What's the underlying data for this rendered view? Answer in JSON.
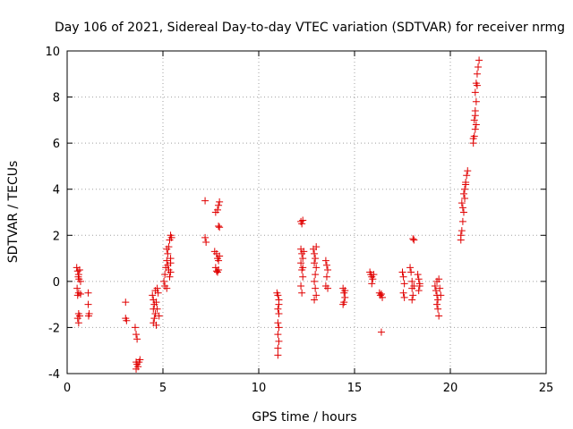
{
  "chart_data": {
    "type": "scatter",
    "title": "Day 106 of 2021, Sidereal Day-to-day VTEC variation (SDTVAR) for receiver nrmg",
    "xlabel": "GPS time / hours",
    "ylabel": "SDTVAR / TECUs",
    "xlim": [
      0,
      25
    ],
    "ylim": [
      -4,
      10
    ],
    "xticks": [
      0,
      5,
      10,
      15,
      20,
      25
    ],
    "yticks": [
      -4,
      -2,
      0,
      2,
      4,
      6,
      8,
      10
    ],
    "xtick_labels": [
      "0",
      "5",
      "10",
      "15",
      "20",
      "25"
    ],
    "ytick_labels": [
      "-4",
      "-2",
      "0",
      "2",
      "4",
      "6",
      "8",
      "10"
    ],
    "grid": true,
    "marker": "+",
    "color": "#e00000",
    "series": [
      {
        "name": "SDTVAR",
        "points": [
          [
            0.5,
            0.6
          ],
          [
            0.55,
            0.45
          ],
          [
            0.6,
            0.3
          ],
          [
            0.62,
            0.1
          ],
          [
            0.65,
            0.5
          ],
          [
            0.58,
            0.2
          ],
          [
            0.7,
            0.0
          ],
          [
            0.52,
            -0.3
          ],
          [
            0.6,
            -0.5
          ],
          [
            0.7,
            -0.55
          ],
          [
            0.55,
            -0.6
          ],
          [
            0.6,
            -1.4
          ],
          [
            0.65,
            -1.5
          ],
          [
            0.55,
            -1.6
          ],
          [
            0.6,
            -1.8
          ],
          [
            1.1,
            -0.5
          ],
          [
            1.1,
            -1.0
          ],
          [
            1.15,
            -1.4
          ],
          [
            1.12,
            -1.5
          ],
          [
            3.05,
            -0.9
          ],
          [
            3.05,
            -1.6
          ],
          [
            3.1,
            -1.7
          ],
          [
            3.55,
            -2.0
          ],
          [
            3.6,
            -2.3
          ],
          [
            3.65,
            -2.5
          ],
          [
            3.6,
            -3.5
          ],
          [
            3.65,
            -3.6
          ],
          [
            3.7,
            -3.7
          ],
          [
            3.75,
            -3.5
          ],
          [
            3.8,
            -3.4
          ],
          [
            3.6,
            -3.8
          ],
          [
            4.45,
            -0.6
          ],
          [
            4.5,
            -0.8
          ],
          [
            4.55,
            -1.0
          ],
          [
            4.5,
            -1.2
          ],
          [
            4.6,
            -1.4
          ],
          [
            4.55,
            -1.6
          ],
          [
            4.5,
            -1.8
          ],
          [
            4.65,
            -1.9
          ],
          [
            4.6,
            -0.4
          ],
          [
            4.7,
            -0.3
          ],
          [
            4.75,
            -0.5
          ],
          [
            4.7,
            -1.2
          ],
          [
            4.8,
            -1.5
          ],
          [
            4.65,
            -0.9
          ],
          [
            5.05,
            0.0
          ],
          [
            5.1,
            0.3
          ],
          [
            5.15,
            0.6
          ],
          [
            5.2,
            0.9
          ],
          [
            5.25,
            1.2
          ],
          [
            5.3,
            1.5
          ],
          [
            5.35,
            1.8
          ],
          [
            5.4,
            2.0
          ],
          [
            5.1,
            -0.2
          ],
          [
            5.2,
            -0.3
          ],
          [
            5.3,
            0.5
          ],
          [
            5.4,
            0.8
          ],
          [
            5.35,
            0.2
          ],
          [
            5.4,
            1.0
          ],
          [
            5.45,
            1.9
          ],
          [
            5.2,
            1.4
          ],
          [
            5.25,
            0.7
          ],
          [
            5.4,
            0.4
          ],
          [
            7.2,
            3.5
          ],
          [
            7.2,
            1.9
          ],
          [
            7.25,
            1.7
          ],
          [
            7.75,
            3.0
          ],
          [
            7.85,
            3.1
          ],
          [
            7.9,
            3.3
          ],
          [
            7.95,
            3.45
          ],
          [
            7.9,
            2.4
          ],
          [
            7.95,
            2.35
          ],
          [
            7.7,
            1.3
          ],
          [
            7.8,
            1.2
          ],
          [
            7.85,
            1.0
          ],
          [
            7.9,
            0.9
          ],
          [
            7.95,
            1.1
          ],
          [
            7.75,
            0.6
          ],
          [
            7.8,
            0.45
          ],
          [
            7.85,
            0.4
          ],
          [
            7.9,
            0.5
          ],
          [
            10.95,
            -0.5
          ],
          [
            11.0,
            -0.6
          ],
          [
            11.05,
            -0.8
          ],
          [
            11.0,
            -1.2
          ],
          [
            11.05,
            -1.4
          ],
          [
            11.0,
            -1.8
          ],
          [
            11.05,
            -2.0
          ],
          [
            11.0,
            -2.3
          ],
          [
            11.05,
            -2.6
          ],
          [
            11.0,
            -2.9
          ],
          [
            11.0,
            -3.2
          ],
          [
            11.05,
            -1.0
          ],
          [
            12.2,
            2.6
          ],
          [
            12.25,
            2.5
          ],
          [
            12.3,
            2.65
          ],
          [
            12.2,
            1.4
          ],
          [
            12.25,
            1.2
          ],
          [
            12.3,
            1.0
          ],
          [
            12.2,
            0.8
          ],
          [
            12.25,
            0.5
          ],
          [
            12.3,
            0.2
          ],
          [
            12.2,
            -0.2
          ],
          [
            12.25,
            -0.5
          ],
          [
            12.35,
            1.3
          ],
          [
            12.3,
            0.6
          ],
          [
            12.85,
            1.4
          ],
          [
            12.9,
            1.2
          ],
          [
            12.95,
            1.0
          ],
          [
            12.9,
            0.8
          ],
          [
            13.0,
            0.6
          ],
          [
            12.95,
            0.3
          ],
          [
            12.9,
            0.0
          ],
          [
            12.95,
            -0.3
          ],
          [
            13.0,
            -0.6
          ],
          [
            12.9,
            -0.8
          ],
          [
            13.0,
            1.5
          ],
          [
            13.5,
            0.9
          ],
          [
            13.55,
            0.7
          ],
          [
            13.6,
            0.5
          ],
          [
            13.55,
            0.2
          ],
          [
            13.5,
            -0.2
          ],
          [
            13.6,
            -0.3
          ],
          [
            14.4,
            -0.3
          ],
          [
            14.45,
            -0.5
          ],
          [
            14.5,
            -0.7
          ],
          [
            14.45,
            -0.9
          ],
          [
            14.4,
            -1.0
          ],
          [
            14.5,
            -0.4
          ],
          [
            15.8,
            0.4
          ],
          [
            15.85,
            0.3
          ],
          [
            15.9,
            0.2
          ],
          [
            15.95,
            0.1
          ],
          [
            15.9,
            -0.1
          ],
          [
            16.0,
            0.3
          ],
          [
            16.3,
            -0.5
          ],
          [
            16.35,
            -0.6
          ],
          [
            16.4,
            -0.55
          ],
          [
            16.45,
            -0.7
          ],
          [
            16.4,
            -2.2
          ],
          [
            17.5,
            0.4
          ],
          [
            17.55,
            0.2
          ],
          [
            17.6,
            -0.1
          ],
          [
            17.55,
            -0.5
          ],
          [
            17.6,
            -0.7
          ],
          [
            17.9,
            0.6
          ],
          [
            17.95,
            0.4
          ],
          [
            18.0,
            0.0
          ],
          [
            18.0,
            -0.3
          ],
          [
            18.05,
            -0.6
          ],
          [
            18.0,
            -0.8
          ],
          [
            18.05,
            1.85
          ],
          [
            18.1,
            1.8
          ],
          [
            18.1,
            -0.2
          ],
          [
            18.3,
            0.3
          ],
          [
            18.35,
            0.1
          ],
          [
            18.4,
            -0.2
          ],
          [
            18.35,
            -0.4
          ],
          [
            18.4,
            -0.1
          ],
          [
            19.2,
            -0.2
          ],
          [
            19.25,
            -0.4
          ],
          [
            19.3,
            -0.6
          ],
          [
            19.35,
            -0.8
          ],
          [
            19.3,
            -1.0
          ],
          [
            19.35,
            -1.2
          ],
          [
            19.4,
            -1.5
          ],
          [
            19.3,
            0.0
          ],
          [
            19.4,
            0.1
          ],
          [
            19.45,
            -0.3
          ],
          [
            19.5,
            -0.6
          ],
          [
            20.55,
            1.8
          ],
          [
            20.6,
            2.2
          ],
          [
            20.65,
            2.6
          ],
          [
            20.7,
            3.0
          ],
          [
            20.6,
            3.4
          ],
          [
            20.7,
            3.8
          ],
          [
            20.75,
            4.0
          ],
          [
            20.8,
            4.3
          ],
          [
            20.85,
            4.6
          ],
          [
            20.9,
            4.8
          ],
          [
            20.65,
            3.2
          ],
          [
            20.75,
            3.6
          ],
          [
            20.55,
            2.0
          ],
          [
            20.8,
            4.2
          ],
          [
            21.2,
            6.0
          ],
          [
            21.25,
            6.3
          ],
          [
            21.3,
            6.6
          ],
          [
            21.25,
            7.0
          ],
          [
            21.3,
            7.4
          ],
          [
            21.35,
            7.8
          ],
          [
            21.3,
            8.2
          ],
          [
            21.35,
            8.6
          ],
          [
            21.4,
            9.0
          ],
          [
            21.45,
            9.3
          ],
          [
            21.5,
            9.6
          ],
          [
            21.4,
            8.5
          ],
          [
            21.3,
            7.2
          ],
          [
            21.35,
            6.8
          ],
          [
            21.2,
            6.2
          ]
        ]
      }
    ]
  }
}
